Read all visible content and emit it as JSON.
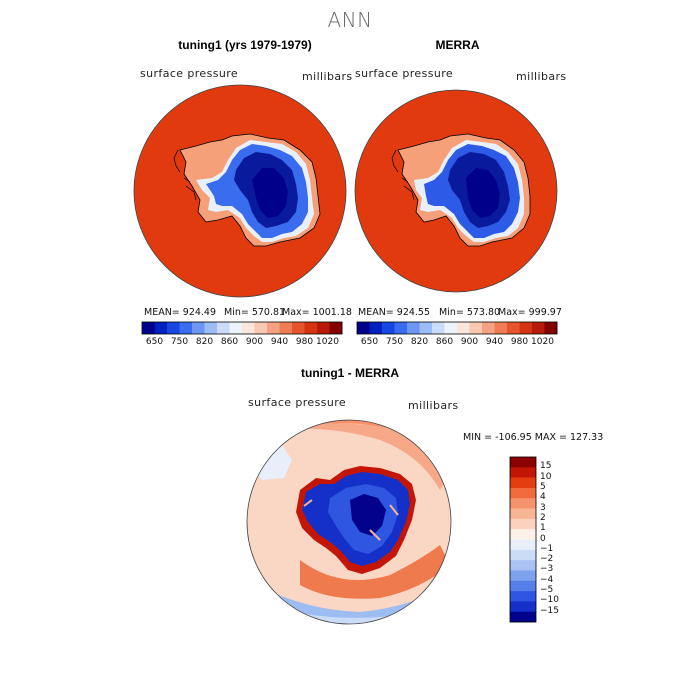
{
  "title": "ANN",
  "panels": [
    {
      "title": "tuning1 (yrs 1979-1979)",
      "field": "surface pressure",
      "units": "millibars",
      "mean_label": "MEAN= 924.49",
      "min_label": "Min= 570.81",
      "max_label": "Max= 1001.18"
    },
    {
      "title": "MERRA",
      "field": "surface pressure",
      "units": "millibars",
      "mean_label": "MEAN= 924.55",
      "min_label": "Min= 573.80",
      "max_label": "Max= 999.97"
    }
  ],
  "colorbar_top": {
    "colors": [
      "#00008b",
      "#0020c0",
      "#1448e0",
      "#3a6cf0",
      "#6c96f2",
      "#9cbcf6",
      "#cadcf8",
      "#eef4fb",
      "#fbe6dc",
      "#f9c8b0",
      "#f6a282",
      "#f07c56",
      "#e5552c",
      "#d63313",
      "#b81a0a",
      "#850000"
    ],
    "tick_labels": [
      "650",
      "750",
      "820",
      "860",
      "900",
      "940",
      "980",
      "1020"
    ]
  },
  "diff": {
    "title": "tuning1 - MERRA",
    "field": "surface pressure",
    "units": "millibars",
    "minmax_label": "MIN = -106.95 MAX = 127.33",
    "colorbar": {
      "colors": [
        "#8b0000",
        "#c41606",
        "#e33d10",
        "#f06a3e",
        "#f5936d",
        "#f8b595",
        "#fad2bd",
        "#fdf0e7",
        "#e8effa",
        "#cbdcf6",
        "#a9c2f2",
        "#7fa2ee",
        "#557ee8",
        "#2e56e0",
        "#1430c8",
        "#02028c"
      ],
      "tick_labels": [
        "15",
        "10",
        "5",
        "4",
        "3",
        "2",
        "1",
        "0",
        "−1",
        "−2",
        "−3",
        "−4",
        "−5",
        "−10",
        "−15"
      ]
    }
  }
}
